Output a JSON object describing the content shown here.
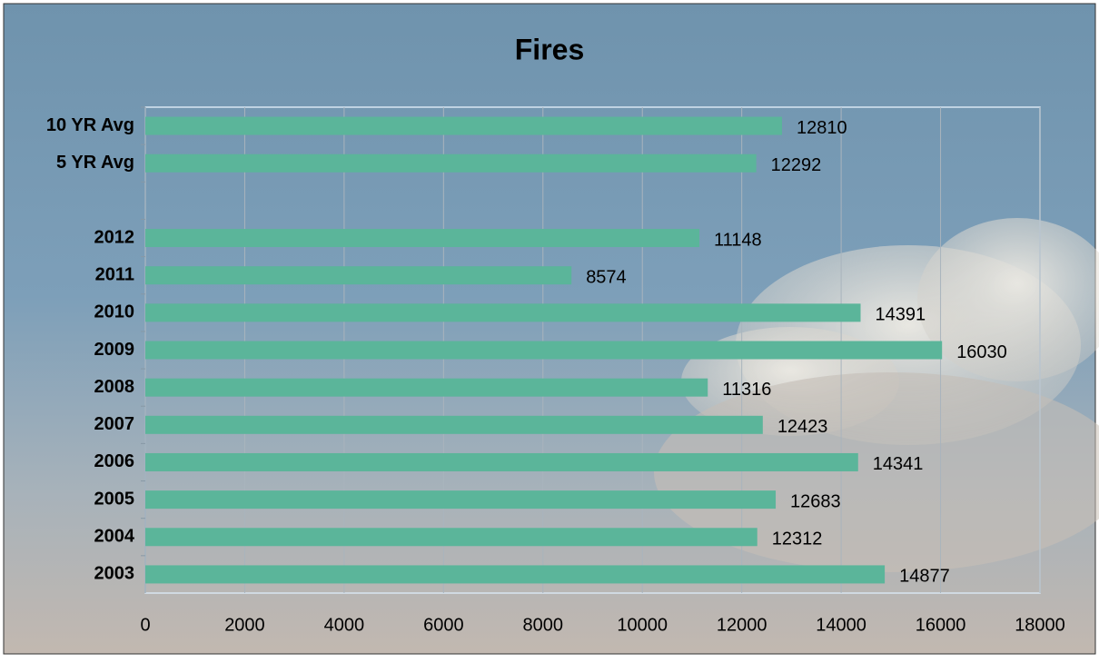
{
  "chart_data": {
    "type": "bar",
    "orientation": "horizontal",
    "title": "Fires",
    "categories": [
      "10 YR Avg",
      "5 YR Avg",
      null,
      "2012",
      "2011",
      "2010",
      "2009",
      "2008",
      "2007",
      "2006",
      "2005",
      "2004",
      "2003"
    ],
    "values": [
      12810,
      12292,
      null,
      11148,
      8574,
      14391,
      16030,
      11316,
      12423,
      14341,
      12683,
      12312,
      14877
    ],
    "color": "#5bb59a",
    "xlim": [
      0,
      18000
    ],
    "xticks": [
      0,
      2000,
      4000,
      6000,
      8000,
      10000,
      12000,
      14000,
      16000,
      18000
    ],
    "grid": true
  }
}
